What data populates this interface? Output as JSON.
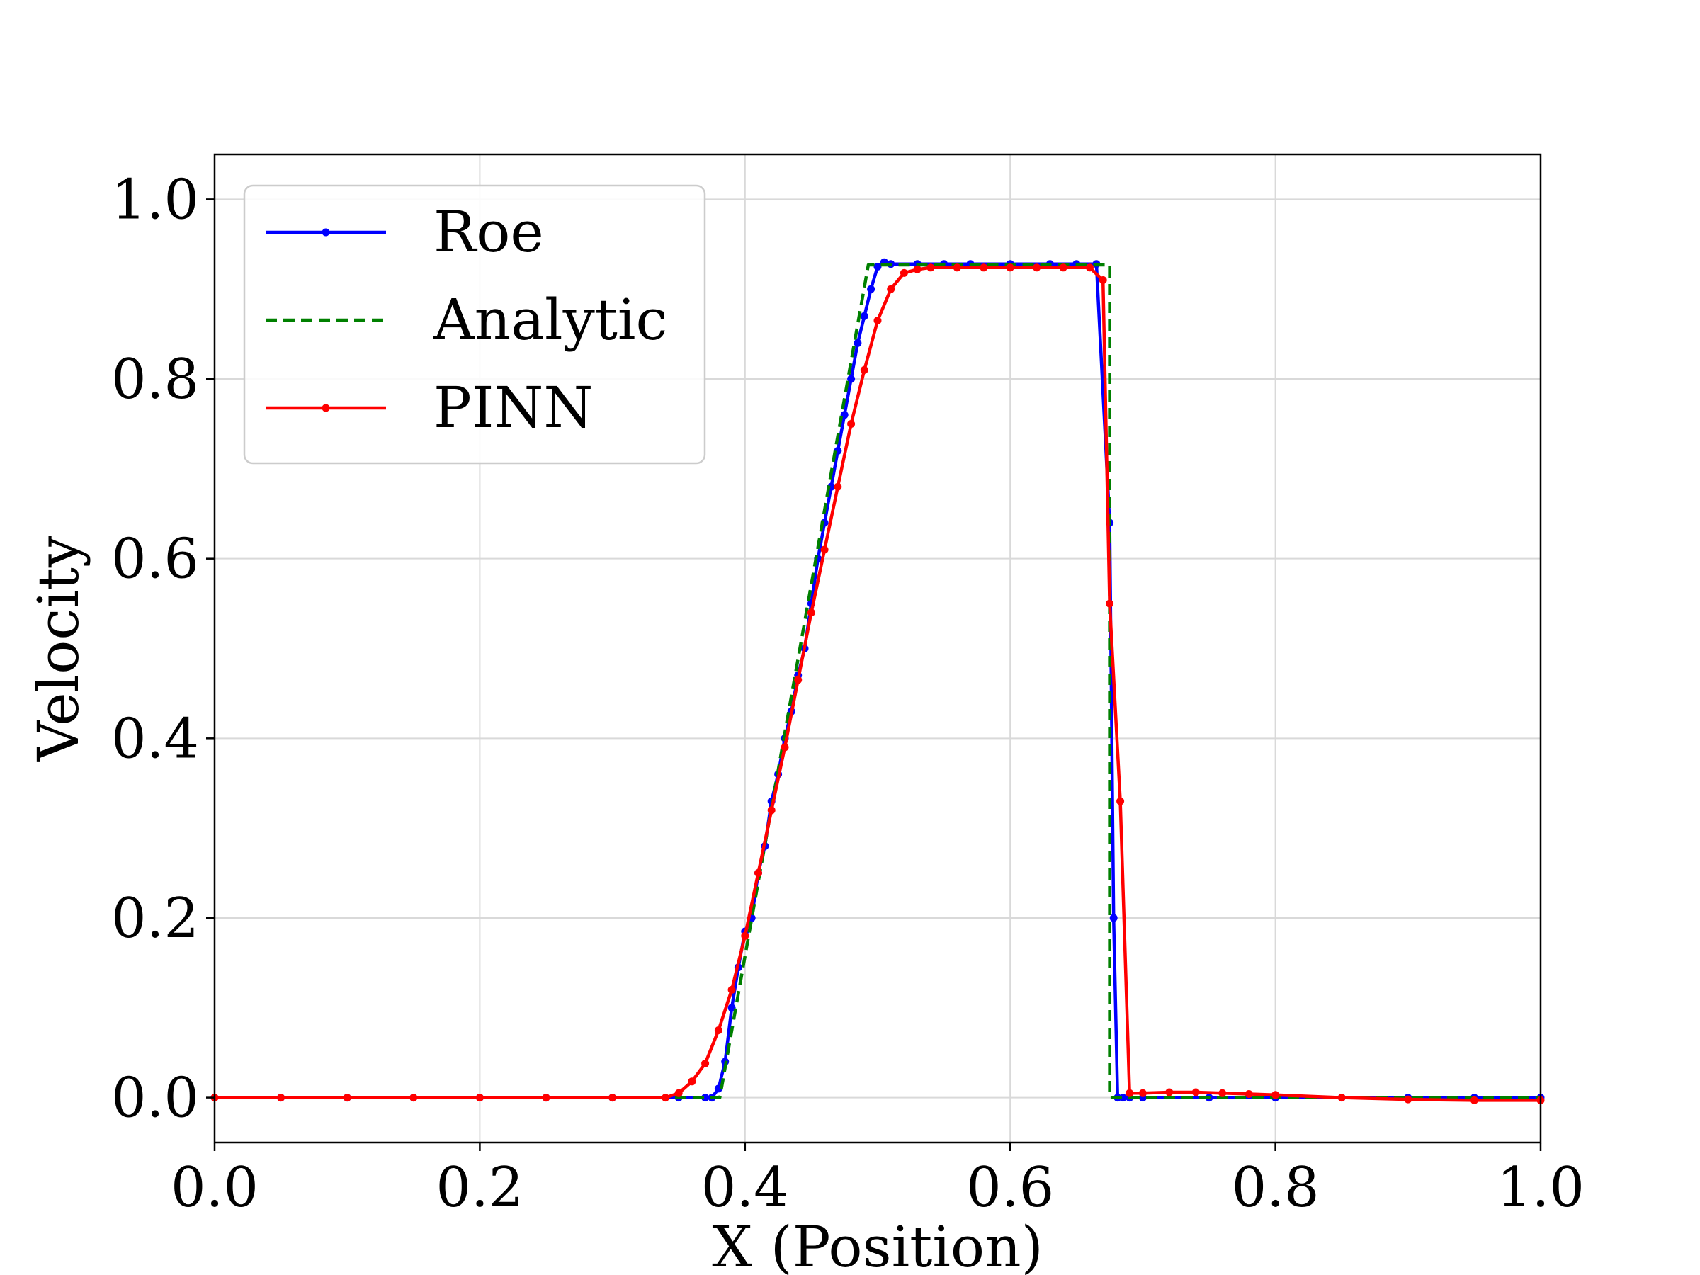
{
  "chart_data": {
    "type": "line",
    "title": "",
    "xlabel": "X (Position)",
    "ylabel": "Velocity",
    "xlim": [
      0.0,
      1.0
    ],
    "ylim": [
      -0.05,
      1.05
    ],
    "xticks": [
      "0.0",
      "0.2",
      "0.4",
      "0.6",
      "0.8",
      "1.0"
    ],
    "yticks": [
      "0.0",
      "0.2",
      "0.4",
      "0.6",
      "0.8",
      "1.0"
    ],
    "grid": true,
    "legend_position": "top-left",
    "series": [
      {
        "name": "Roe",
        "color": "#0000ff",
        "style": "solid-markers",
        "x": [
          0.0,
          0.05,
          0.1,
          0.15,
          0.2,
          0.25,
          0.3,
          0.35,
          0.37,
          0.375,
          0.38,
          0.385,
          0.39,
          0.395,
          0.4,
          0.405,
          0.41,
          0.415,
          0.42,
          0.425,
          0.43,
          0.435,
          0.44,
          0.445,
          0.45,
          0.455,
          0.46,
          0.465,
          0.47,
          0.475,
          0.48,
          0.485,
          0.49,
          0.495,
          0.5,
          0.505,
          0.51,
          0.53,
          0.55,
          0.57,
          0.6,
          0.63,
          0.65,
          0.665,
          0.675,
          0.678,
          0.681,
          0.685,
          0.69,
          0.7,
          0.75,
          0.8,
          0.85,
          0.9,
          0.95,
          1.0
        ],
        "y": [
          0.0,
          0.0,
          0.0,
          0.0,
          0.0,
          0.0,
          0.0,
          0.0,
          0.0,
          0.0,
          0.01,
          0.04,
          0.1,
          0.145,
          0.185,
          0.2,
          0.25,
          0.28,
          0.33,
          0.36,
          0.4,
          0.43,
          0.47,
          0.5,
          0.55,
          0.6,
          0.64,
          0.68,
          0.72,
          0.76,
          0.8,
          0.84,
          0.87,
          0.9,
          0.925,
          0.93,
          0.928,
          0.928,
          0.928,
          0.928,
          0.928,
          0.928,
          0.928,
          0.928,
          0.64,
          0.2,
          0.0,
          0.0,
          0.0,
          0.0,
          0.0,
          0.0,
          0.0,
          0.0,
          0.0,
          0.0
        ]
      },
      {
        "name": "Analytic",
        "color": "#008000",
        "style": "dashed",
        "x": [
          0.0,
          0.381,
          0.493,
          0.675,
          0.675,
          1.0
        ],
        "y": [
          0.0,
          0.0,
          0.927,
          0.927,
          0.0,
          0.0
        ]
      },
      {
        "name": "PINN",
        "color": "#ff0000",
        "style": "solid-markers",
        "x": [
          0.0,
          0.05,
          0.1,
          0.15,
          0.2,
          0.25,
          0.3,
          0.34,
          0.35,
          0.36,
          0.37,
          0.38,
          0.39,
          0.4,
          0.41,
          0.42,
          0.43,
          0.44,
          0.45,
          0.46,
          0.47,
          0.48,
          0.49,
          0.5,
          0.51,
          0.52,
          0.53,
          0.54,
          0.56,
          0.58,
          0.6,
          0.62,
          0.64,
          0.66,
          0.67,
          0.675,
          0.683,
          0.69,
          0.7,
          0.72,
          0.74,
          0.76,
          0.78,
          0.8,
          0.85,
          0.9,
          0.95,
          1.0
        ],
        "y": [
          0.0,
          0.0,
          0.0,
          0.0,
          0.0,
          0.0,
          0.0,
          0.0,
          0.005,
          0.018,
          0.038,
          0.075,
          0.12,
          0.18,
          0.25,
          0.32,
          0.39,
          0.465,
          0.54,
          0.61,
          0.68,
          0.75,
          0.81,
          0.865,
          0.9,
          0.918,
          0.922,
          0.924,
          0.924,
          0.924,
          0.924,
          0.924,
          0.924,
          0.924,
          0.91,
          0.55,
          0.33,
          0.005,
          0.005,
          0.006,
          0.006,
          0.005,
          0.004,
          0.003,
          0.0,
          -0.002,
          -0.003,
          -0.003
        ]
      }
    ]
  }
}
